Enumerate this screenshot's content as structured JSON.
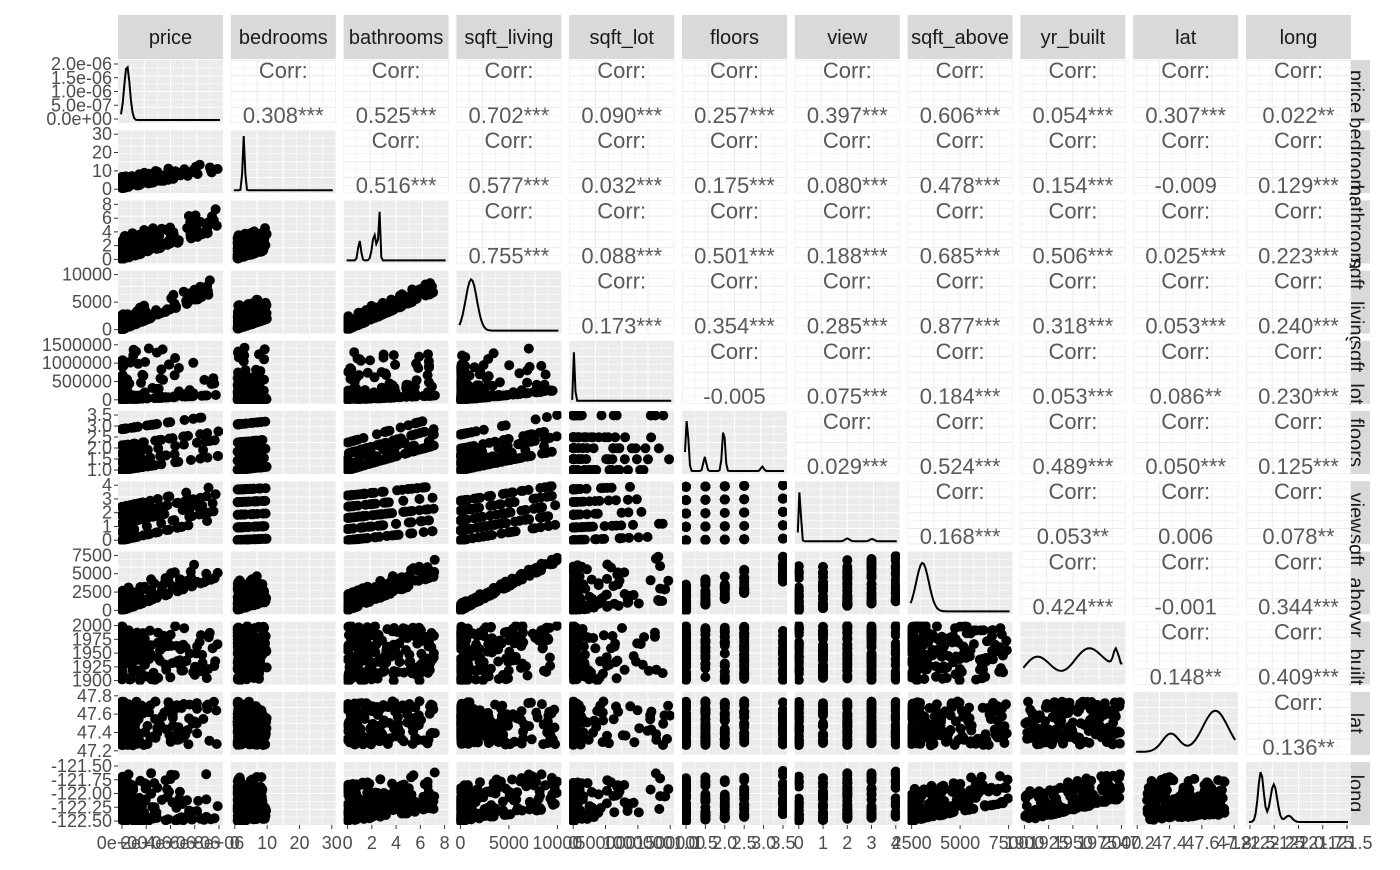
{
  "chart_data": {
    "type": "scatter-matrix",
    "variables": [
      "price",
      "bedrooms",
      "bathrooms",
      "sqft_living",
      "sqft_lot",
      "floors",
      "view",
      "sqft_above",
      "yr_built",
      "lat",
      "long"
    ],
    "row_labels": [
      "price",
      "bedrooms",
      "bathrooms",
      "sqft_living",
      "sqft_lot",
      "floors",
      "view",
      "sqft_above",
      "yr_built",
      "lat",
      "long"
    ],
    "corr_label": "Corr:",
    "correlations": [
      {
        "row": 0,
        "col": 1,
        "text": "0.308***",
        "value": 0.308
      },
      {
        "row": 0,
        "col": 2,
        "text": "0.525***",
        "value": 0.525
      },
      {
        "row": 0,
        "col": 3,
        "text": "0.702***",
        "value": 0.702
      },
      {
        "row": 0,
        "col": 4,
        "text": "0.090***",
        "value": 0.09
      },
      {
        "row": 0,
        "col": 5,
        "text": "0.257***",
        "value": 0.257
      },
      {
        "row": 0,
        "col": 6,
        "text": "0.397***",
        "value": 0.397
      },
      {
        "row": 0,
        "col": 7,
        "text": "0.606***",
        "value": 0.606
      },
      {
        "row": 0,
        "col": 8,
        "text": "0.054***",
        "value": 0.054
      },
      {
        "row": 0,
        "col": 9,
        "text": "0.307***",
        "value": 0.307
      },
      {
        "row": 0,
        "col": 10,
        "text": "0.022**",
        "value": 0.022
      },
      {
        "row": 1,
        "col": 2,
        "text": "0.516***",
        "value": 0.516
      },
      {
        "row": 1,
        "col": 3,
        "text": "0.577***",
        "value": 0.577
      },
      {
        "row": 1,
        "col": 4,
        "text": "0.032***",
        "value": 0.032
      },
      {
        "row": 1,
        "col": 5,
        "text": "0.175***",
        "value": 0.175
      },
      {
        "row": 1,
        "col": 6,
        "text": "0.080***",
        "value": 0.08
      },
      {
        "row": 1,
        "col": 7,
        "text": "0.478***",
        "value": 0.478
      },
      {
        "row": 1,
        "col": 8,
        "text": "0.154***",
        "value": 0.154
      },
      {
        "row": 1,
        "col": 9,
        "text": "-0.009",
        "value": -0.009
      },
      {
        "row": 1,
        "col": 10,
        "text": "0.129***",
        "value": 0.129
      },
      {
        "row": 2,
        "col": 3,
        "text": "0.755***",
        "value": 0.755
      },
      {
        "row": 2,
        "col": 4,
        "text": "0.088***",
        "value": 0.088
      },
      {
        "row": 2,
        "col": 5,
        "text": "0.501***",
        "value": 0.501
      },
      {
        "row": 2,
        "col": 6,
        "text": "0.188***",
        "value": 0.188
      },
      {
        "row": 2,
        "col": 7,
        "text": "0.685***",
        "value": 0.685
      },
      {
        "row": 2,
        "col": 8,
        "text": "0.506***",
        "value": 0.506
      },
      {
        "row": 2,
        "col": 9,
        "text": "0.025***",
        "value": 0.025
      },
      {
        "row": 2,
        "col": 10,
        "text": "0.223***",
        "value": 0.223
      },
      {
        "row": 3,
        "col": 4,
        "text": "0.173***",
        "value": 0.173
      },
      {
        "row": 3,
        "col": 5,
        "text": "0.354***",
        "value": 0.354
      },
      {
        "row": 3,
        "col": 6,
        "text": "0.285***",
        "value": 0.285
      },
      {
        "row": 3,
        "col": 7,
        "text": "0.877***",
        "value": 0.877
      },
      {
        "row": 3,
        "col": 8,
        "text": "0.318***",
        "value": 0.318
      },
      {
        "row": 3,
        "col": 9,
        "text": "0.053***",
        "value": 0.053
      },
      {
        "row": 3,
        "col": 10,
        "text": "0.240***",
        "value": 0.24
      },
      {
        "row": 4,
        "col": 5,
        "text": "-0.005",
        "value": -0.005
      },
      {
        "row": 4,
        "col": 6,
        "text": "0.075***",
        "value": 0.075
      },
      {
        "row": 4,
        "col": 7,
        "text": "0.184***",
        "value": 0.184
      },
      {
        "row": 4,
        "col": 8,
        "text": "0.053***",
        "value": 0.053
      },
      {
        "row": 4,
        "col": 9,
        "text": "0.086**",
        "value": 0.086
      },
      {
        "row": 4,
        "col": 10,
        "text": "0.230***",
        "value": 0.23
      },
      {
        "row": 5,
        "col": 6,
        "text": "0.029***",
        "value": 0.029
      },
      {
        "row": 5,
        "col": 7,
        "text": "0.524***",
        "value": 0.524
      },
      {
        "row": 5,
        "col": 8,
        "text": "0.489***",
        "value": 0.489
      },
      {
        "row": 5,
        "col": 9,
        "text": "0.050***",
        "value": 0.05
      },
      {
        "row": 5,
        "col": 10,
        "text": "0.125***",
        "value": 0.125
      },
      {
        "row": 6,
        "col": 7,
        "text": "0.168***",
        "value": 0.168
      },
      {
        "row": 6,
        "col": 8,
        "text": "0.053**",
        "value": 0.053
      },
      {
        "row": 6,
        "col": 9,
        "text": "0.006",
        "value": 0.006
      },
      {
        "row": 6,
        "col": 10,
        "text": "0.078**",
        "value": 0.078
      },
      {
        "row": 7,
        "col": 8,
        "text": "0.424***",
        "value": 0.424
      },
      {
        "row": 7,
        "col": 9,
        "text": "-0.001",
        "value": -0.001
      },
      {
        "row": 7,
        "col": 10,
        "text": "0.344***",
        "value": 0.344
      },
      {
        "row": 8,
        "col": 9,
        "text": "0.148**",
        "value": 0.148
      },
      {
        "row": 8,
        "col": 10,
        "text": "0.409***",
        "value": 0.409
      },
      {
        "row": 9,
        "col": 10,
        "text": "0.136**",
        "value": 0.136
      }
    ],
    "y_axis_ticks": [
      [
        "0.0e+00",
        "5.0e-07",
        "1.0e-06",
        "1.5e-06",
        "2.0e-06"
      ],
      [
        "0",
        "10",
        "20",
        "30"
      ],
      [
        "0",
        "2",
        "4",
        "6",
        "8"
      ],
      [
        "0",
        "5000",
        "10000"
      ],
      [
        "0",
        "500000",
        "1000000",
        "1500000"
      ],
      [
        "1.0",
        "1.5",
        "2.0",
        "2.5",
        "3.0",
        "3.5"
      ],
      [
        "0",
        "1",
        "2",
        "3",
        "4"
      ],
      [
        "0",
        "2500",
        "5000",
        "7500"
      ],
      [
        "1900",
        "1925",
        "1950",
        "1975",
        "2000"
      ],
      [
        "47.2",
        "47.4",
        "47.6",
        "47.8"
      ],
      [
        "-122.50",
        "-122.25",
        "-122.00",
        "-121.75",
        "-121.50"
      ]
    ],
    "x_axis_ticks": [
      [
        "0e+00",
        "2e+06",
        "4e+06",
        "6e+06",
        "8e+06"
      ],
      [
        "0",
        "10",
        "20",
        "30"
      ],
      [
        "0",
        "2",
        "4",
        "6",
        "8"
      ],
      [
        "0",
        "5000",
        "10000"
      ],
      [
        "0",
        "500000",
        "1000000",
        "1500000"
      ],
      [
        "1.0",
        "1.5",
        "2.0",
        "2.5",
        "3.0",
        "3.5"
      ],
      [
        "0",
        "1",
        "2",
        "3",
        "4"
      ],
      [
        "2500",
        "5000",
        "7500"
      ],
      [
        "1900",
        "1925",
        "1950",
        "1975",
        "2000"
      ],
      [
        "47.2",
        "47.4",
        "47.6",
        "47.8"
      ],
      [
        "-122.5",
        "-122.25",
        "-122.0",
        "-121.75",
        "-121.5"
      ]
    ],
    "axis_ranges": [
      [
        75000,
        7700000
      ],
      [
        0,
        33
      ],
      [
        0,
        8
      ],
      [
        290,
        13540
      ],
      [
        520,
        1651000
      ],
      [
        1,
        3.5
      ],
      [
        0,
        4
      ],
      [
        290,
        9410
      ],
      [
        1900,
        2015
      ],
      [
        47.16,
        47.78
      ],
      [
        -122.52,
        -121.31
      ]
    ],
    "grid": true,
    "colors": {
      "panel_bg": "#ebebeb",
      "grid": "#ffffff",
      "strip_bg": "#d9d9d9",
      "strip_border": "#ffffff",
      "points": "#000000",
      "text": "#4d4d4d",
      "corr_text": "#595959"
    }
  }
}
